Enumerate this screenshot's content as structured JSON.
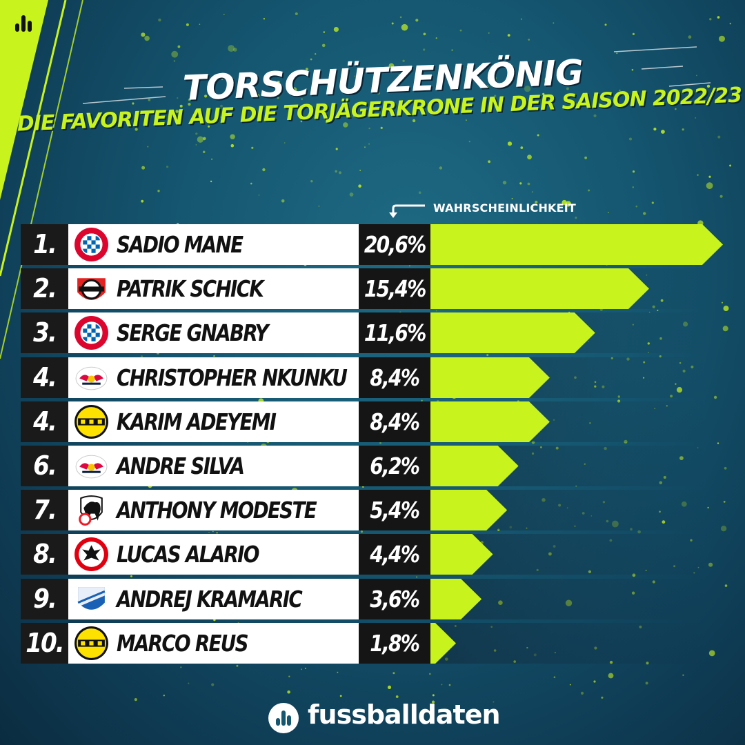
{
  "header": {
    "title": "TORSCHÜTZENKÖNIG",
    "subtitle": "DIE FAVORITEN AUF DIE TORJÄGERKRONE IN DER SAISON 2022/23",
    "column_label": "WAHRSCHEINLICHKEIT"
  },
  "footer": {
    "brand": "fussballdaten"
  },
  "colors": {
    "accent": "#c9f31d",
    "background": "#155670",
    "rank_bg": "#1a1a1a",
    "pct_bg": "#151515"
  },
  "rows": [
    {
      "rank": "1.",
      "name": "SADIO MANE",
      "club_icon": "fc-bayern-crest",
      "pct_label": "20,6%"
    },
    {
      "rank": "2.",
      "name": "PATRIK SCHICK",
      "club_icon": "leverkusen-crest",
      "pct_label": "15,4%"
    },
    {
      "rank": "3.",
      "name": "SERGE GNABRY",
      "club_icon": "fc-bayern-crest",
      "pct_label": "11,6%"
    },
    {
      "rank": "4.",
      "name": "CHRISTOPHER NKUNKU",
      "club_icon": "rb-leipzig-crest",
      "pct_label": "8,4%"
    },
    {
      "rank": "4.",
      "name": "KARIM ADEYEMI",
      "club_icon": "bvb-crest",
      "pct_label": "8,4%"
    },
    {
      "rank": "6.",
      "name": "ANDRE SILVA",
      "club_icon": "rb-leipzig-crest",
      "pct_label": "6,2%"
    },
    {
      "rank": "7.",
      "name": "ANTHONY MODESTE",
      "club_icon": "koeln-crest",
      "pct_label": "5,4%"
    },
    {
      "rank": "8.",
      "name": "LUCAS ALARIO",
      "club_icon": "eintracht-crest",
      "pct_label": "4,4%"
    },
    {
      "rank": "9.",
      "name": "ANDREJ KRAMARIC",
      "club_icon": "hoffenheim-crest",
      "pct_label": "3,6%"
    },
    {
      "rank": "10.",
      "name": "MARCO REUS",
      "club_icon": "bvb-crest",
      "pct_label": "1,8%"
    }
  ],
  "chart_data": {
    "type": "bar",
    "orientation": "horizontal",
    "title": "TORSCHÜTZENKÖNIG",
    "subtitle": "DIE FAVORITEN AUF DIE TORJÄGERKRONE IN DER SAISON 2022/23",
    "categories": [
      "SADIO MANE",
      "PATRIK SCHICK",
      "SERGE GNABRY",
      "CHRISTOPHER NKUNKU",
      "KARIM ADEYEMI",
      "ANDRE SILVA",
      "ANTHONY MODESTE",
      "LUCAS ALARIO",
      "ANDREJ KRAMARIC",
      "MARCO REUS"
    ],
    "values": [
      20.6,
      15.4,
      11.6,
      8.4,
      8.4,
      6.2,
      5.4,
      4.4,
      3.6,
      1.8
    ],
    "unit": "%",
    "ylabel": "WAHRSCHEINLICHKEIT",
    "xlim": [
      0,
      20.6
    ],
    "grid": false,
    "legend": "none"
  }
}
